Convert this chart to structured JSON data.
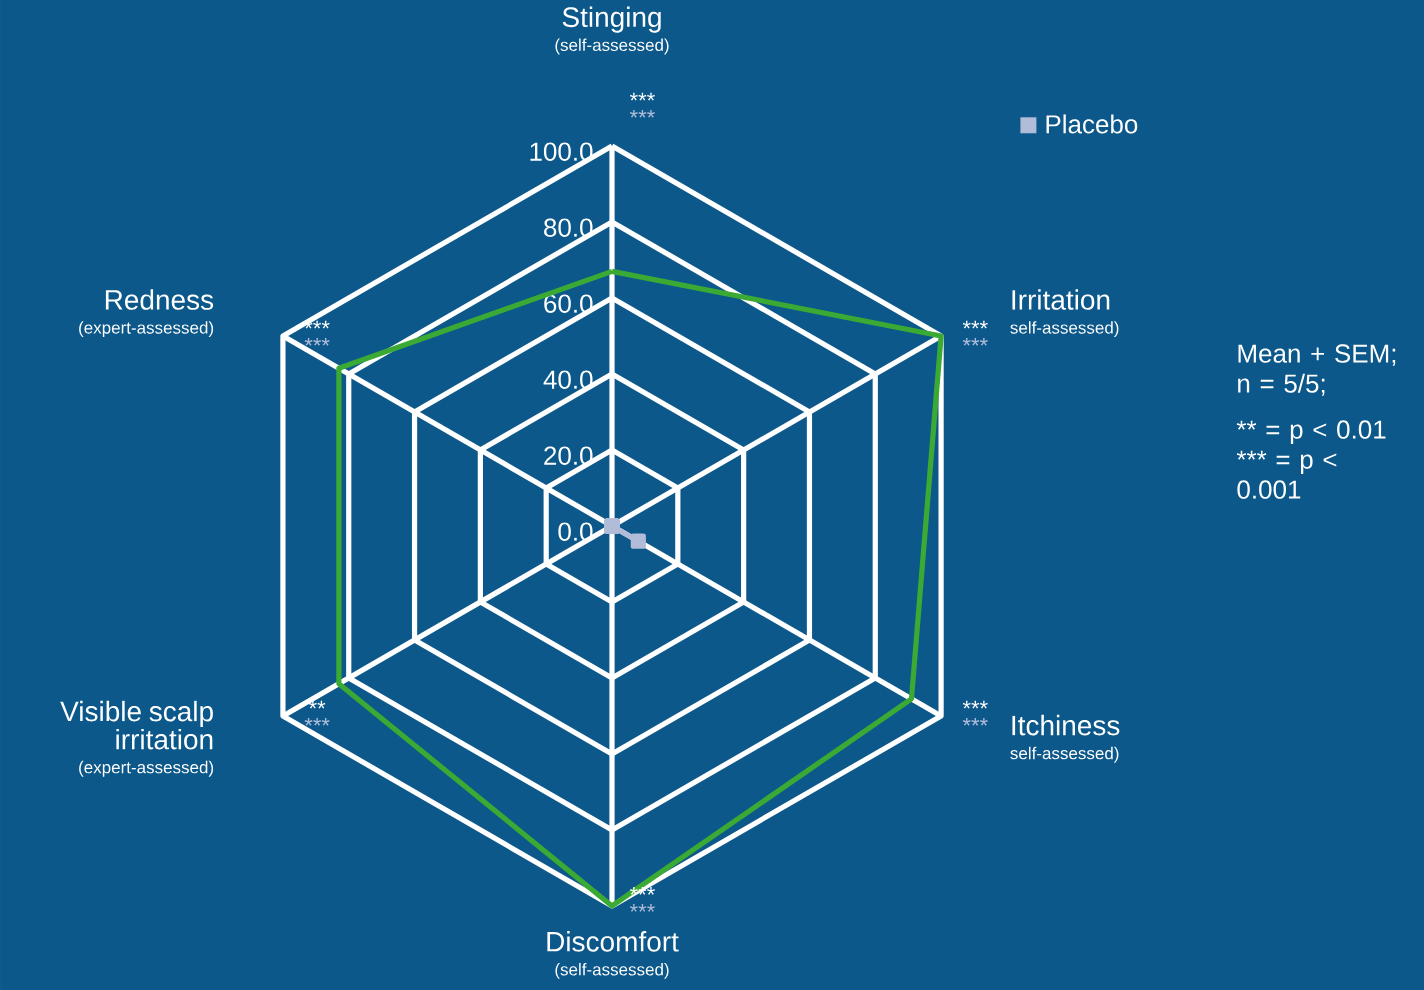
{
  "chart_data": {
    "type": "radar",
    "categories": [
      "Stinging",
      "Irritation",
      "Itchiness",
      "Discomfort",
      "Visible scalp irritation",
      "Redness"
    ],
    "series": [
      {
        "name": "Placebo",
        "color": "#b0bcd8",
        "marker": "square",
        "values": [
          0,
          0,
          8,
          0,
          0,
          0
        ]
      },
      {
        "color": "#3aaa35",
        "values": [
          67,
          100,
          91,
          100,
          83,
          83
        ]
      }
    ],
    "ylim": [
      0,
      100
    ],
    "yticks": [
      {
        "value": 0,
        "label": "0.0"
      },
      {
        "value": 20,
        "label": "20.0"
      },
      {
        "value": 40,
        "label": "40.0"
      },
      {
        "value": 60,
        "label": "60.0"
      },
      {
        "value": 80,
        "label": "80.0"
      },
      {
        "value": 100,
        "label": "100.0"
      }
    ],
    "grid": true,
    "legend": "top right",
    "annotations": [
      "(self-assessed)",
      "self-assessed)",
      "self-assessed)",
      "(self-assessed)",
      "(expert-assessed)",
      "(expert-assessed)",
      "***",
      "***",
      "***",
      "***",
      "**",
      "***",
      "***",
      "***",
      "***",
      "***",
      "***",
      "***",
      "Mean + SEM; n = 5/5;",
      "** = p < 0.01 *** = p < 0.001"
    ]
  }
}
